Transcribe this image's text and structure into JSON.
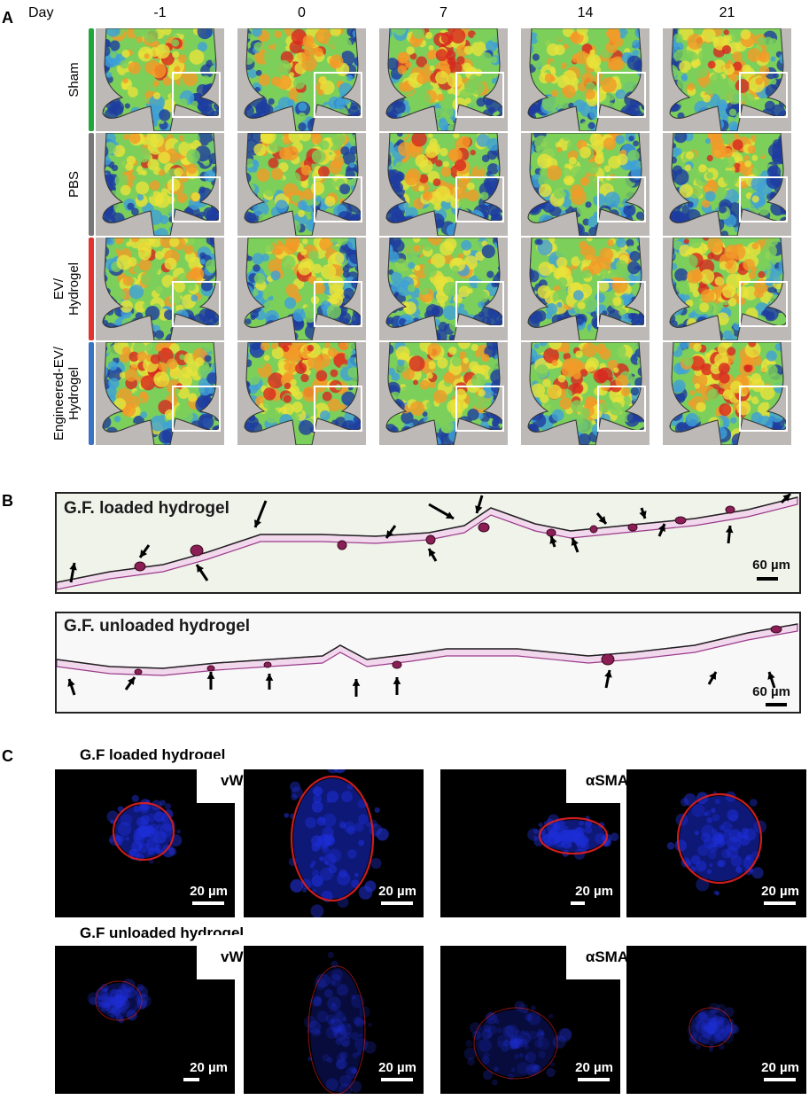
{
  "panels": {
    "a": "A",
    "b": "B",
    "c": "C"
  },
  "panel_a": {
    "day_header": "Day",
    "days": [
      "-1",
      "0",
      "7",
      "14",
      "21"
    ],
    "groups": [
      {
        "label_lines": [
          "Sham"
        ],
        "color": "#22a63b",
        "warmth": [
          0.55,
          0.55,
          0.65,
          0.55,
          0.6
        ]
      },
      {
        "label_lines": [
          "PBS"
        ],
        "color": "#777777",
        "warmth": [
          0.45,
          0.55,
          0.55,
          0.4,
          0.4
        ]
      },
      {
        "label_lines": [
          "EV/",
          "Hydrogel"
        ],
        "color": "#e0322f",
        "warmth": [
          0.5,
          0.4,
          0.35,
          0.35,
          0.7
        ]
      },
      {
        "label_lines": [
          "Engineered-EV/",
          "Hydrogel"
        ],
        "color": "#3b72c4",
        "warmth": [
          0.6,
          0.7,
          0.55,
          0.7,
          0.7
        ]
      }
    ],
    "heat_colors": [
      "#1e3ca0",
      "#3fa0d8",
      "#7ccf5a",
      "#e8e23a",
      "#f29a28",
      "#d8271f"
    ]
  },
  "panel_b": {
    "loaded_title": "G.F. loaded hydrogel",
    "unloaded_title": "G.F. unloaded hydrogel",
    "scale_label": "60 µm"
  },
  "panel_c": {
    "loaded_title": "G.F loaded hydrogel",
    "unloaded_title": "G.F unloaded hydrogel",
    "stain_vwf": "vWF",
    "stain_asma": "αSMA",
    "scale_label": "20 µm"
  }
}
